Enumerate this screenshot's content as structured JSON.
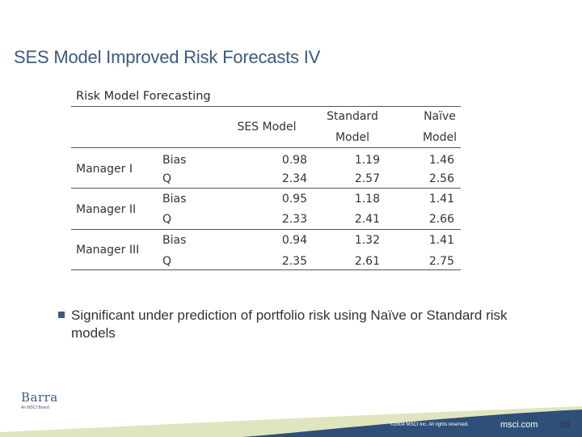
{
  "slide": {
    "title": "SES Model Improved Risk Forecasts IV"
  },
  "table": {
    "caption": "Risk Model Forecasting",
    "headers": {
      "ses": "SES Model",
      "standard_line1": "Standard",
      "standard_line2": "Model",
      "naive_line1": "Naïve",
      "naive_line2": "Model"
    },
    "rows": [
      {
        "manager": "Manager I",
        "metrics": [
          {
            "label": "Bias",
            "ses": "0.98",
            "standard": "1.19",
            "naive": "1.46"
          },
          {
            "label": "Q",
            "ses": "2.34",
            "standard": "2.57",
            "naive": "2.56"
          }
        ]
      },
      {
        "manager": "Manager II",
        "metrics": [
          {
            "label": "Bias",
            "ses": "0.95",
            "standard": "1.18",
            "naive": "1.41"
          },
          {
            "label": "Q",
            "ses": "2.33",
            "standard": "2.41",
            "naive": "2.66"
          }
        ]
      },
      {
        "manager": "Manager III",
        "metrics": [
          {
            "label": "Bias",
            "ses": "0.94",
            "standard": "1.32",
            "naive": "1.41"
          },
          {
            "label": "Q",
            "ses": "2.35",
            "standard": "2.61",
            "naive": "2.75"
          }
        ]
      }
    ]
  },
  "bullets": [
    "Significant under prediction of portfolio risk using Naïve or Standard risk models"
  ],
  "logo": {
    "word": "Barra",
    "sub": "An MSCI Brand"
  },
  "footer": {
    "copyright": "©2004 MSCI Inc. All rights reserved.",
    "site": "msci.com",
    "page_number": "26"
  },
  "colors": {
    "accent": "#3a5a80",
    "band_dark": "#2e4f78",
    "band_light": "#c9cf8a"
  }
}
